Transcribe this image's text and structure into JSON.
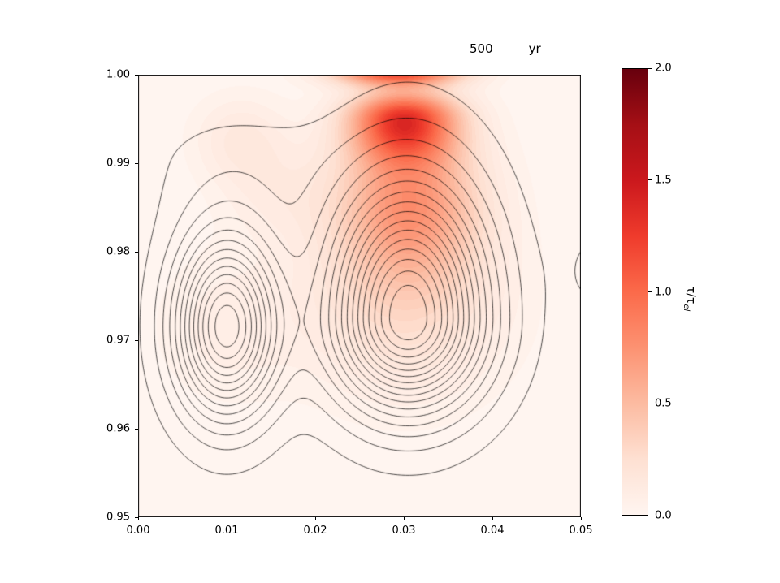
{
  "figure": {
    "title_value": "500",
    "title_unit": "yr"
  },
  "chart_data": {
    "type": "contour-heatmap",
    "title": "500 yr",
    "xlabel": "",
    "ylabel": "",
    "xlim": [
      0.0,
      0.05
    ],
    "ylim": [
      0.95,
      1.0
    ],
    "x_ticks": [
      "0.00",
      "0.01",
      "0.02",
      "0.03",
      "0.04",
      "0.05"
    ],
    "y_ticks": [
      "1.00",
      "0.99",
      "0.98",
      "0.97",
      "0.96",
      "0.95"
    ],
    "grid": false,
    "legend": "none",
    "colorbar": {
      "label_main": "τ/τ",
      "label_sub": "el",
      "vmin": 0.0,
      "vmax": 2.0,
      "ticks": [
        "2.0",
        "1.5",
        "1.0",
        "0.5",
        "0.0"
      ],
      "colormap": "Reds",
      "colormap_stops": [
        "#fff5f0",
        "#fee0d2",
        "#fcbba1",
        "#fc9272",
        "#fb6a4a",
        "#ef3b2c",
        "#cb181d",
        "#a50f15",
        "#67000d"
      ]
    },
    "band_step": 0.04,
    "heat_gaussians": [
      [
        1.15,
        0.03,
        0.995,
        0.004,
        0.002,
        0.0032
      ],
      [
        0.7,
        0.0307,
        0.9858,
        0.0055,
        0.0065,
        0.006
      ],
      [
        1.3,
        0.0293,
        1.0006,
        0.0048,
        0.0012,
        0.0012
      ],
      [
        0.28,
        0.03,
        0.9745,
        0.0078,
        0.0075,
        0.0075
      ],
      [
        0.16,
        0.0115,
        0.9928,
        0.0038,
        0.0035,
        0.0035
      ],
      [
        0.11,
        0.0158,
        0.9868,
        0.0045,
        0.004,
        0.004
      ],
      [
        0.1,
        0.01,
        0.9715,
        0.0058,
        0.006,
        0.006
      ]
    ],
    "contour_gaussians": [
      [
        1.0,
        0.0305,
        0.9725,
        0.006,
        0.0105,
        0.007
      ],
      [
        0.8,
        0.01,
        0.9715,
        0.004,
        0.0072,
        0.0068
      ],
      [
        0.05,
        0.052,
        0.978,
        0.003,
        0.0045,
        0.0045
      ],
      [
        0.06,
        0.012,
        0.99,
        0.0075,
        0.004,
        0.006
      ]
    ],
    "contour_levels": {
      "start": 0.04,
      "step": 0.06,
      "count": 16
    }
  }
}
